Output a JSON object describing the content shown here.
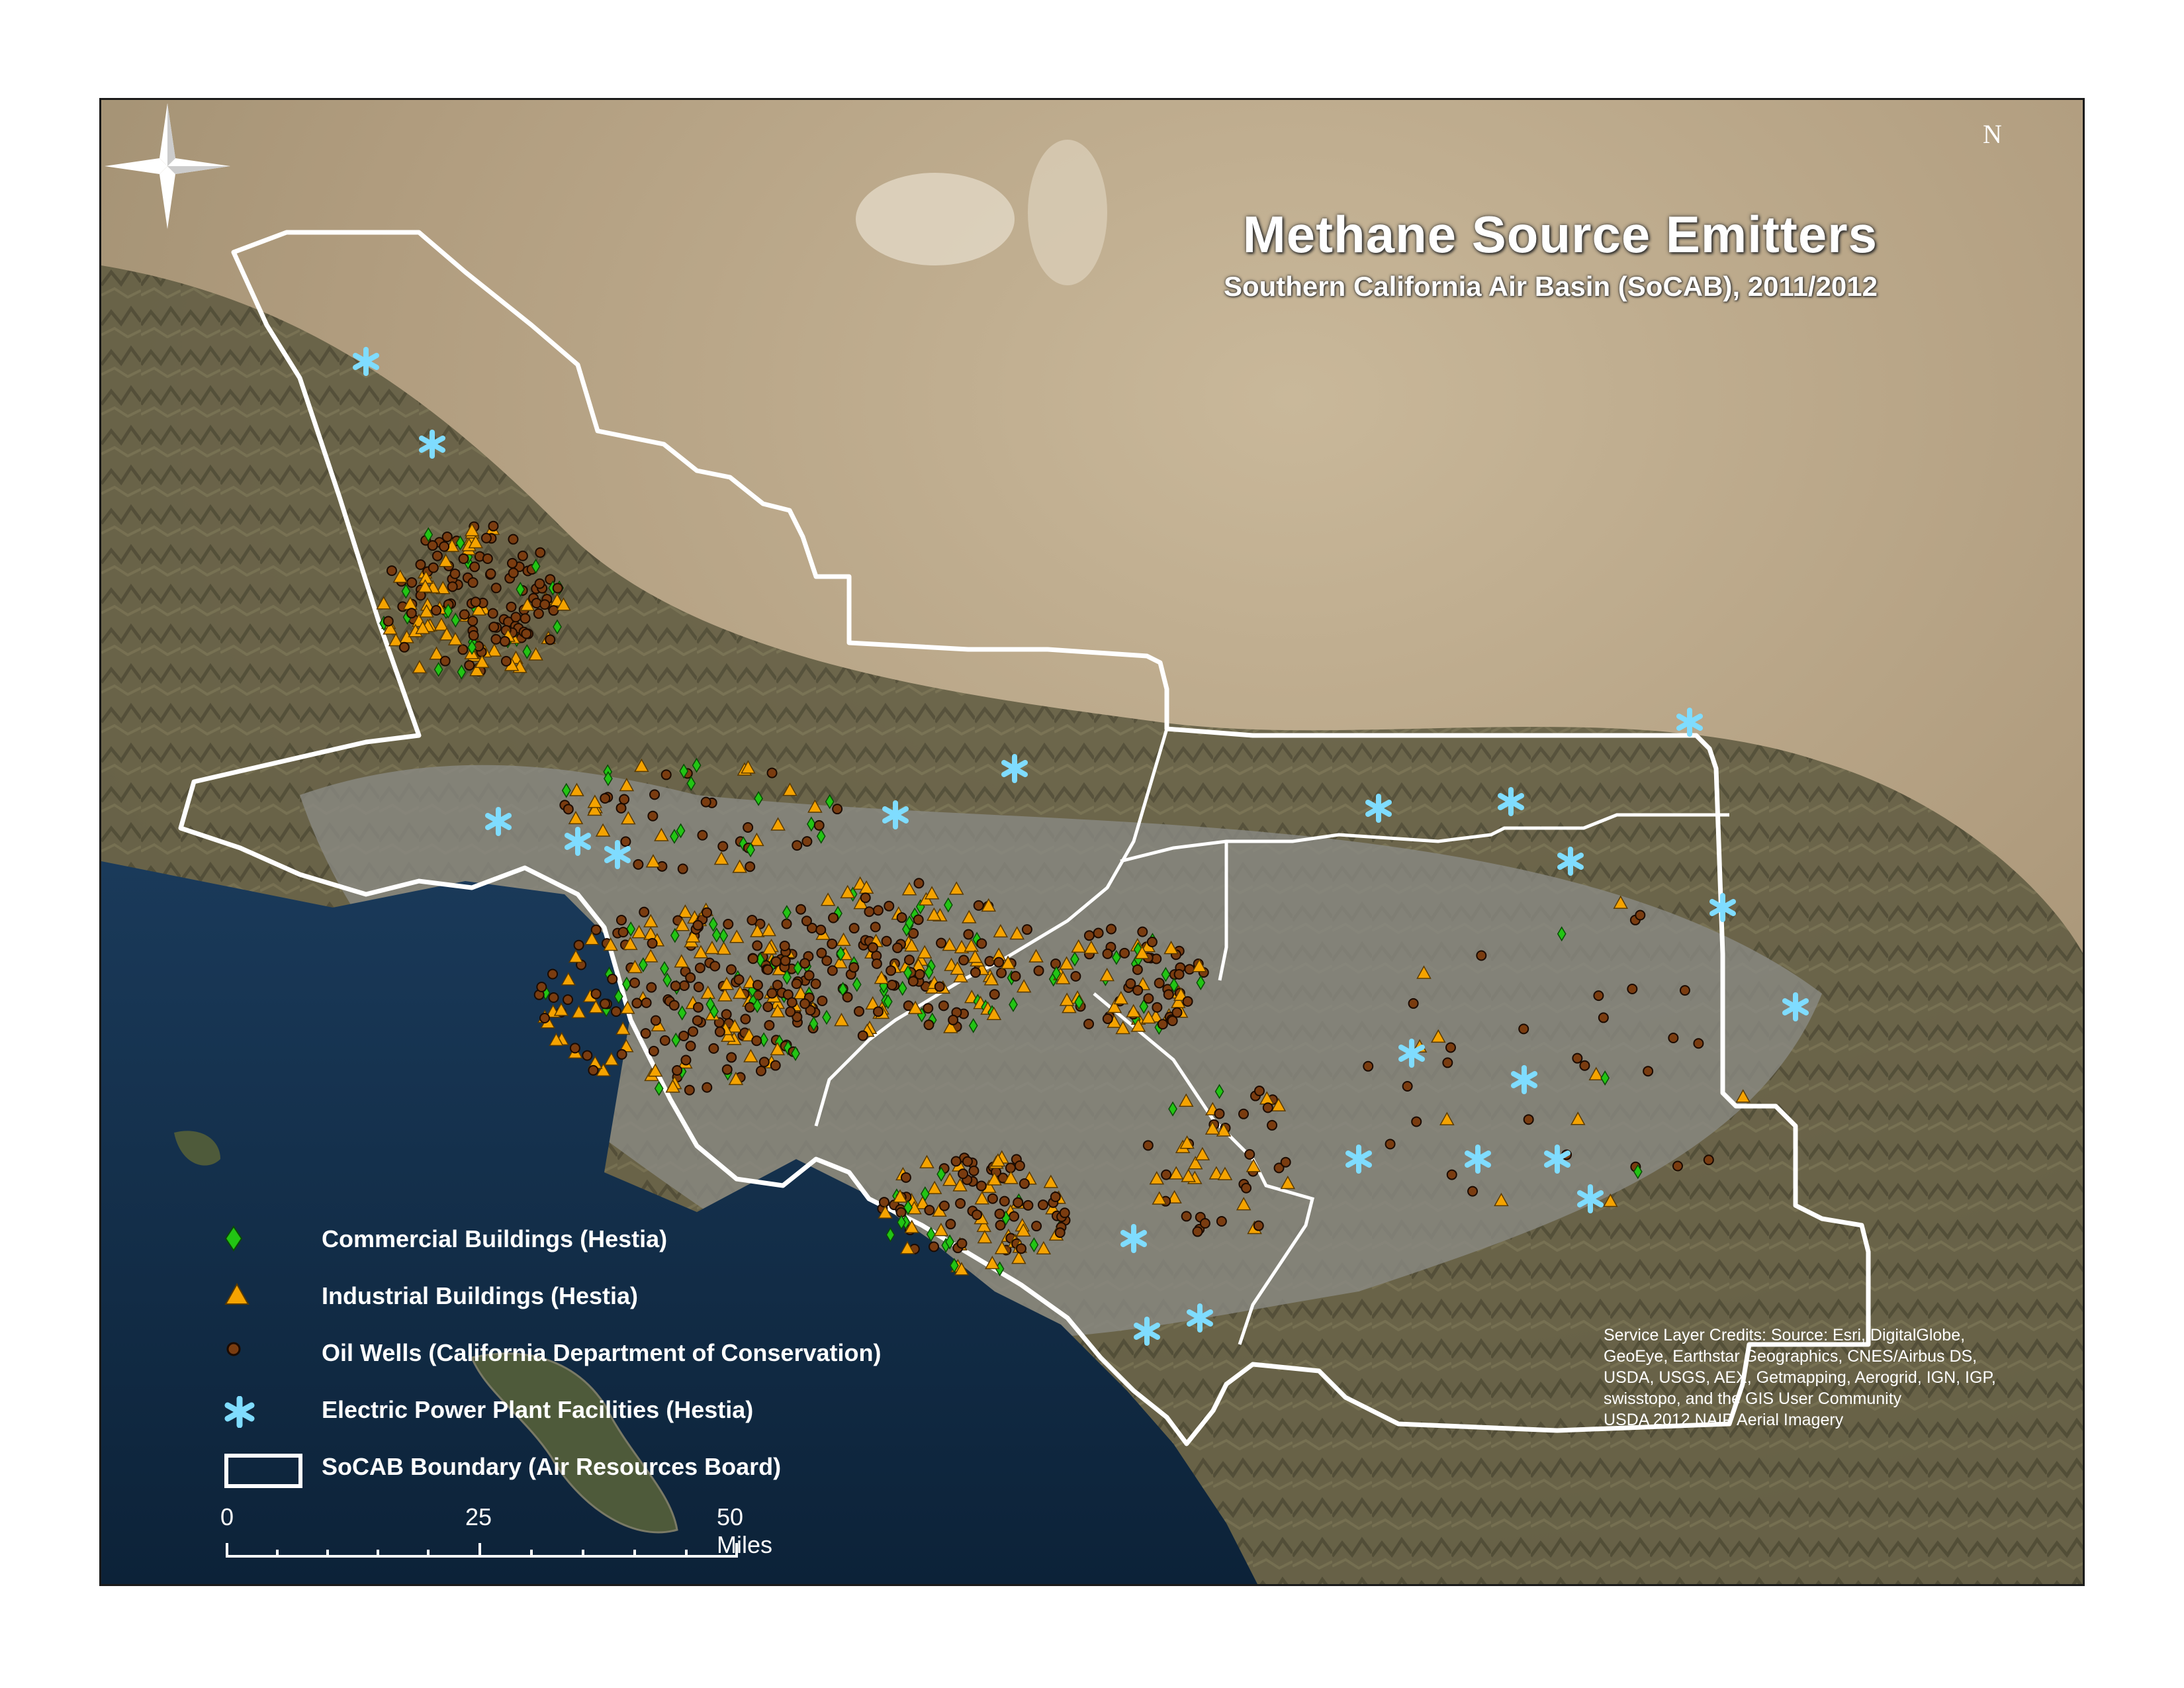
{
  "map": {
    "title": "Methane Source Emitters",
    "subtitle": "Southern California Air Basin (SoCAB), 2011/2012",
    "north_label": "N",
    "legend": [
      {
        "icon": "green-diamond-icon",
        "label": "Commercial Buildings (Hestia)",
        "color": "#22c414"
      },
      {
        "icon": "orange-triangle-icon",
        "label": "Industrial Buildings (Hestia)",
        "color": "#f5a300"
      },
      {
        "icon": "brown-circle-icon",
        "label": "Oil Wells (California Department of Conservation)",
        "color": "#7a3c10"
      },
      {
        "icon": "light-blue-asterisk-icon",
        "label": "Electric Power Plant Facilities (Hestia)",
        "color": "#7fdcff"
      },
      {
        "icon": "white-rectangle-icon",
        "label": "SoCAB Boundary (Air Resources Board)",
        "color": "#ffffff"
      }
    ],
    "scale_bar": {
      "labels": [
        "0",
        "25",
        "50 Miles"
      ]
    },
    "credits": [
      "Service Layer Credits: Source: Esri, DigitalGlobe,",
      "GeoEye, Earthstar Geographics, CNES/Airbus DS,",
      "USDA, USGS, AEX, Getmapping, Aerogrid, IGN, IGP,",
      "swisstopo, and the GIS User Community",
      "USDA 2012 NAIP Aerial Imagery"
    ],
    "colors": {
      "ocean": "#0f2a45",
      "desert": "#b8a487",
      "mountains": "#5c5a3e",
      "urban": "#8c8c86",
      "boundary": "#ffffff"
    }
  }
}
